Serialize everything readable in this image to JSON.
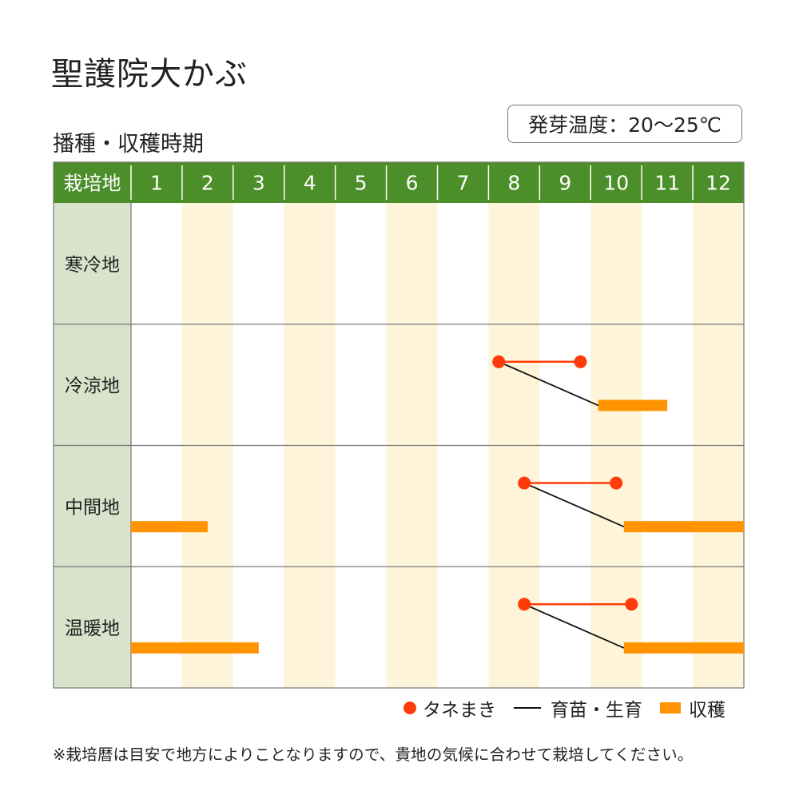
{
  "title": "聖護院大かぶ",
  "subtitle": "播種・収穫時期",
  "germination_temp": "発芽温度：20〜25℃",
  "footnote": "※栽培暦は目安で地方によりことなりますので、貴地の気候に合わせて栽培してください。",
  "colors": {
    "header": "#4c8f2a",
    "region_cell": "#d9e2cb",
    "stripe": "#fdf4d9",
    "sowing": "#ff3b0a",
    "sowing_line": "#ff3b0a",
    "growth_line": "#111111",
    "harvest": "#ff9400",
    "grid": "#777777"
  },
  "chart_data": {
    "type": "gantt",
    "corner_label": "栽培地",
    "months": [
      "1",
      "2",
      "3",
      "4",
      "5",
      "6",
      "7",
      "8",
      "9",
      "10",
      "11",
      "12"
    ],
    "regions": [
      {
        "name": "寒冷地",
        "sowing": null,
        "growth": null,
        "harvest": []
      },
      {
        "name": "冷涼地",
        "sowing": [
          8.2,
          9.8
        ],
        "growth": [
          8.2,
          10.15
        ],
        "harvest": [
          [
            10.15,
            11.5
          ]
        ]
      },
      {
        "name": "中間地",
        "sowing": [
          8.7,
          10.5
        ],
        "growth": [
          8.7,
          10.65
        ],
        "harvest": [
          [
            1.0,
            2.5
          ],
          [
            10.65,
            13.0
          ]
        ]
      },
      {
        "name": "温暖地",
        "sowing": [
          8.7,
          10.8
        ],
        "growth": [
          8.7,
          10.65
        ],
        "harvest": [
          [
            1.0,
            3.5
          ],
          [
            10.65,
            13.0
          ]
        ]
      }
    ],
    "legend": [
      "タネまき",
      "育苗・生育",
      "収穫"
    ]
  }
}
